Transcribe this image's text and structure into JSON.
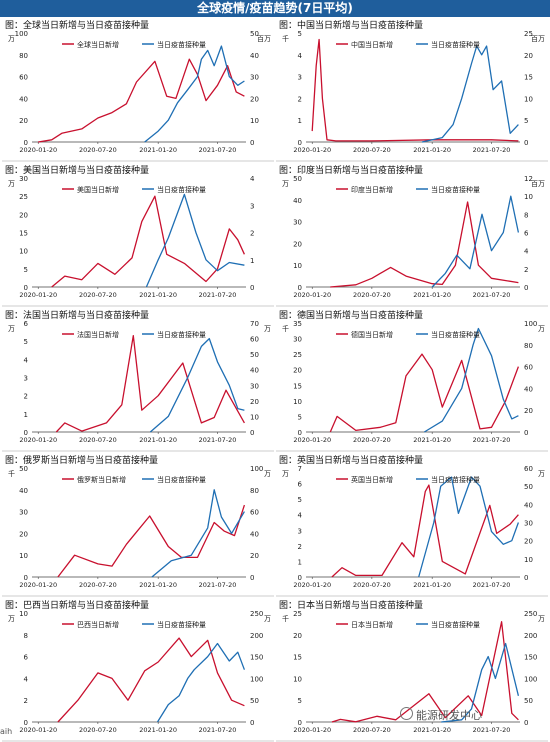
{
  "header": {
    "title": "全球疫情/疫苗趋势(7日平均)"
  },
  "watermark": "能源研发中心",
  "left_mark": "aih",
  "colors": {
    "cases": "#c8102e",
    "vaccine": "#1f6fb4",
    "banner": "#1f5e9c"
  },
  "chart_data": [
    {
      "type": "line",
      "title": "图：全球当日新增与当日疫苗接种量",
      "x_ticks": [
        "2020-01-20",
        "2020-07-20",
        "2021-01-20",
        "2021-07-20"
      ],
      "left_unit": "万",
      "right_unit": "百万",
      "ylim_left": [
        0,
        100
      ],
      "yticks_left": [
        0,
        20,
        40,
        60,
        80,
        100
      ],
      "ylim_right": [
        0,
        50
      ],
      "yticks_right": [
        0,
        10,
        20,
        30,
        40,
        50
      ],
      "series": [
        {
          "name": "全球当日新增",
          "axis": "left",
          "x": [
            "2020-01-20",
            "2020-03-01",
            "2020-04-01",
            "2020-06-01",
            "2020-07-20",
            "2020-09-01",
            "2020-10-15",
            "2020-11-15",
            "2021-01-10",
            "2021-02-15",
            "2021-03-15",
            "2021-04-25",
            "2021-05-20",
            "2021-06-15",
            "2021-07-20",
            "2021-08-20",
            "2021-09-15",
            "2021-10-10"
          ],
          "values": [
            0,
            2,
            8,
            12,
            22,
            27,
            35,
            55,
            74,
            42,
            40,
            76,
            62,
            38,
            52,
            70,
            46,
            42
          ]
        },
        {
          "name": "当日疫苗接种量",
          "axis": "right",
          "x": [
            "2020-12-10",
            "2021-01-20",
            "2021-02-20",
            "2021-03-20",
            "2021-04-20",
            "2021-05-20",
            "2021-06-01",
            "2021-06-20",
            "2021-07-10",
            "2021-08-01",
            "2021-08-25",
            "2021-09-20",
            "2021-10-10"
          ],
          "values": [
            0,
            5,
            10,
            18,
            24,
            30,
            38,
            42,
            35,
            44,
            30,
            26,
            28
          ]
        }
      ]
    },
    {
      "type": "line",
      "title": "图：中国当日新增与当日疫苗接种量",
      "x_ticks": [
        "2020-01-20",
        "2020-07-20",
        "2021-01-20",
        "2021-07-20"
      ],
      "left_unit": "千",
      "right_unit": "百万",
      "ylim_left": [
        0,
        5
      ],
      "yticks_left": [
        0,
        1,
        2,
        3,
        4,
        5
      ],
      "ylim_right": [
        0,
        25
      ],
      "yticks_right": [
        0,
        5,
        10,
        15,
        20,
        25
      ],
      "series": [
        {
          "name": "中国当日新增",
          "axis": "left",
          "x": [
            "2020-01-20",
            "2020-02-01",
            "2020-02-10",
            "2020-02-20",
            "2020-03-05",
            "2020-04-01",
            "2020-07-20",
            "2021-01-20",
            "2021-07-20",
            "2021-10-10"
          ],
          "values": [
            0.5,
            3.5,
            4.7,
            2,
            0.1,
            0.05,
            0.05,
            0.1,
            0.1,
            0.05
          ]
        },
        {
          "name": "当日疫苗接种量",
          "axis": "right",
          "x": [
            "2020-12-20",
            "2021-02-20",
            "2021-03-25",
            "2021-04-20",
            "2021-05-20",
            "2021-06-05",
            "2021-06-20",
            "2021-07-05",
            "2021-07-25",
            "2021-08-20",
            "2021-09-15",
            "2021-10-10"
          ],
          "values": [
            0,
            1,
            4,
            10,
            18,
            22,
            20,
            22,
            12,
            14,
            2,
            4
          ]
        }
      ]
    },
    {
      "type": "line",
      "title": "图：美国当日新增与当日疫苗接种量",
      "x_ticks": [
        "2020-01-20",
        "2020-07-20",
        "2021-01-20",
        "2021-07-20"
      ],
      "left_unit": "万",
      "right_unit": "",
      "ylim_left": [
        0,
        30
      ],
      "yticks_left": [
        0,
        5,
        10,
        15,
        20,
        25,
        30
      ],
      "ylim_right": [
        0,
        4
      ],
      "yticks_right": [
        0,
        1,
        2,
        3,
        4
      ],
      "series": [
        {
          "name": "美国当日新增",
          "axis": "left",
          "x": [
            "2020-03-01",
            "2020-04-10",
            "2020-06-01",
            "2020-07-20",
            "2020-09-10",
            "2020-11-01",
            "2020-12-01",
            "2021-01-10",
            "2021-02-15",
            "2021-04-10",
            "2021-06-15",
            "2021-07-20",
            "2021-08-25",
            "2021-09-20",
            "2021-10-10"
          ],
          "values": [
            0,
            3,
            2,
            6.5,
            3.5,
            8,
            18,
            25,
            9,
            6.5,
            1.5,
            5,
            16,
            13,
            9
          ]
        },
        {
          "name": "当日疫苗接种量",
          "axis": "right",
          "x": [
            "2020-12-15",
            "2021-01-20",
            "2021-02-20",
            "2021-04-10",
            "2021-05-15",
            "2021-06-15",
            "2021-07-20",
            "2021-08-25",
            "2021-10-10"
          ],
          "values": [
            0,
            1,
            1.8,
            3.4,
            2,
            1,
            0.6,
            0.9,
            0.8
          ]
        }
      ]
    },
    {
      "type": "line",
      "title": "图：印度当日新增与当日疫苗接种量",
      "x_ticks": [
        "2020-01-20",
        "2020-07-20",
        "2021-01-20",
        "2021-07-20"
      ],
      "left_unit": "万",
      "right_unit": "百万",
      "ylim_left": [
        0,
        50
      ],
      "yticks_left": [
        0,
        10,
        20,
        30,
        40,
        50
      ],
      "ylim_right": [
        0,
        12
      ],
      "yticks_right": [
        0,
        2,
        4,
        6,
        8,
        10,
        12
      ],
      "series": [
        {
          "name": "印度当日新增",
          "axis": "left",
          "x": [
            "2020-03-15",
            "2020-06-01",
            "2020-07-20",
            "2020-09-15",
            "2020-11-01",
            "2021-01-20",
            "2021-02-20",
            "2021-04-01",
            "2021-05-08",
            "2021-06-10",
            "2021-07-20",
            "2021-10-10"
          ],
          "values": [
            0,
            1,
            4,
            9,
            5,
            1.5,
            1.2,
            10,
            39,
            10,
            4,
            2
          ]
        },
        {
          "name": "当日疫苗接种量",
          "axis": "right",
          "x": [
            "2021-01-20",
            "2021-03-01",
            "2021-04-05",
            "2021-05-15",
            "2021-06-21",
            "2021-07-20",
            "2021-08-25",
            "2021-09-17",
            "2021-10-10"
          ],
          "values": [
            0,
            1.5,
            3.5,
            2,
            8,
            4,
            6,
            10,
            6
          ]
        }
      ]
    },
    {
      "type": "line",
      "title": "图：法国当日新增与当日疫苗接种量",
      "x_ticks": [
        "2020-01-20",
        "2020-07-20",
        "2021-01-20",
        "2021-07-20"
      ],
      "left_unit": "万",
      "right_unit": "万",
      "ylim_left": [
        0,
        6
      ],
      "yticks_left": [
        0,
        1,
        2,
        3,
        4,
        5,
        6
      ],
      "ylim_right": [
        0,
        70
      ],
      "yticks_right": [
        0,
        10,
        20,
        30,
        40,
        50,
        60,
        70
      ],
      "series": [
        {
          "name": "法国当日新增",
          "axis": "left",
          "x": [
            "2020-03-15",
            "2020-04-10",
            "2020-06-01",
            "2020-08-15",
            "2020-10-01",
            "2020-11-05",
            "2020-12-01",
            "2021-01-20",
            "2021-04-05",
            "2021-06-01",
            "2021-07-10",
            "2021-08-15",
            "2021-10-10"
          ],
          "values": [
            0,
            0.5,
            0.05,
            0.5,
            1.5,
            5.3,
            1.2,
            2,
            3.8,
            0.5,
            0.8,
            2.3,
            0.5
          ]
        },
        {
          "name": "当日疫苗接种量",
          "axis": "right",
          "x": [
            "2020-12-27",
            "2021-02-20",
            "2021-04-20",
            "2021-06-01",
            "2021-06-25",
            "2021-07-20",
            "2021-08-25",
            "2021-09-20",
            "2021-10-10"
          ],
          "values": [
            0,
            10,
            35,
            55,
            60,
            45,
            30,
            15,
            14
          ]
        }
      ]
    },
    {
      "type": "line",
      "title": "图：德国当日新增与当日疫苗接种量",
      "x_ticks": [
        "2020-01-20",
        "2020-07-20",
        "2021-01-20",
        "2021-07-20"
      ],
      "left_unit": "千",
      "right_unit": "万",
      "ylim_left": [
        0,
        35
      ],
      "yticks_left": [
        0,
        5,
        10,
        15,
        20,
        25,
        30,
        35
      ],
      "ylim_right": [
        0,
        100
      ],
      "yticks_right": [
        0,
        20,
        40,
        60,
        80,
        100
      ],
      "series": [
        {
          "name": "德国当日新增",
          "axis": "left",
          "x": [
            "2020-03-15",
            "2020-04-05",
            "2020-06-01",
            "2020-08-15",
            "2020-10-01",
            "2020-11-01",
            "2020-12-20",
            "2021-01-20",
            "2021-02-20",
            "2021-04-20",
            "2021-06-15",
            "2021-07-20",
            "2021-09-01",
            "2021-10-10"
          ],
          "values": [
            0,
            5,
            0.5,
            1.5,
            3,
            18,
            25,
            20,
            8,
            23,
            1,
            1.5,
            10,
            21
          ]
        },
        {
          "name": "当日疫苗接种量",
          "axis": "right",
          "x": [
            "2020-12-27",
            "2021-02-20",
            "2021-04-20",
            "2021-05-25",
            "2021-06-10",
            "2021-07-20",
            "2021-08-25",
            "2021-09-20",
            "2021-10-10"
          ],
          "values": [
            0,
            10,
            40,
            80,
            95,
            70,
            30,
            12,
            15
          ]
        }
      ]
    },
    {
      "type": "line",
      "title": "图：俄罗斯当日新增与当日疫苗接种量",
      "x_ticks": [
        "2020-01-20",
        "2020-07-20",
        "2021-01-20",
        "2021-07-20"
      ],
      "left_unit": "千",
      "right_unit": "万",
      "ylim_left": [
        0,
        50
      ],
      "yticks_left": [
        0,
        10,
        20,
        30,
        40,
        50
      ],
      "ylim_right": [
        0,
        100
      ],
      "yticks_right": [
        0,
        20,
        40,
        60,
        80,
        100
      ],
      "series": [
        {
          "name": "俄罗斯当日新增",
          "axis": "left",
          "x": [
            "2020-03-20",
            "2020-05-10",
            "2020-07-20",
            "2020-09-01",
            "2020-10-15",
            "2020-12-25",
            "2021-02-20",
            "2021-04-01",
            "2021-05-20",
            "2021-07-10",
            "2021-08-10",
            "2021-09-10",
            "2021-10-10"
          ],
          "values": [
            0,
            10,
            6,
            5,
            15,
            28,
            14,
            9,
            9,
            25,
            21,
            19,
            33
          ]
        },
        {
          "name": "当日疫苗接种量",
          "axis": "right",
          "x": [
            "2021-01-01",
            "2021-03-01",
            "2021-05-01",
            "2021-06-20",
            "2021-07-10",
            "2021-08-01",
            "2021-09-01",
            "2021-10-10"
          ],
          "values": [
            0,
            15,
            20,
            45,
            80,
            55,
            40,
            60
          ]
        }
      ]
    },
    {
      "type": "line",
      "title": "图：英国当日新增与当日疫苗接种量",
      "x_ticks": [
        "2020-01-20",
        "2020-07-20",
        "2021-01-20",
        "2021-07-20"
      ],
      "left_unit": "万",
      "right_unit": "万",
      "ylim_left": [
        0,
        7
      ],
      "yticks_left": [
        0,
        1,
        2,
        3,
        4,
        5,
        6,
        7
      ],
      "ylim_right": [
        0,
        60
      ],
      "yticks_right": [
        0,
        10,
        20,
        30,
        40,
        50,
        60
      ],
      "series": [
        {
          "name": "英国当日新增",
          "axis": "left",
          "x": [
            "2020-03-20",
            "2020-04-20",
            "2020-06-01",
            "2020-08-20",
            "2020-10-20",
            "2020-11-25",
            "2020-12-30",
            "2021-01-10",
            "2021-02-20",
            "2021-05-01",
            "2021-07-15",
            "2021-08-05",
            "2021-09-15",
            "2021-10-10"
          ],
          "values": [
            0,
            0.6,
            0.1,
            0.1,
            2.2,
            1.3,
            5.5,
            5.9,
            1,
            0.2,
            4.6,
            2.8,
            3.4,
            4
          ]
        },
        {
          "name": "当日疫苗接种量",
          "axis": "right",
          "x": [
            "2020-12-10",
            "2021-01-25",
            "2021-02-15",
            "2021-03-20",
            "2021-04-10",
            "2021-05-20",
            "2021-06-15",
            "2021-07-20",
            "2021-08-25",
            "2021-09-20",
            "2021-10-10"
          ],
          "values": [
            0,
            30,
            50,
            55,
            35,
            55,
            50,
            25,
            18,
            20,
            30
          ]
        }
      ]
    },
    {
      "type": "line",
      "title": "图：巴西当日新增与当日疫苗接种量",
      "x_ticks": [
        "2020-01-20",
        "2020-07-20",
        "2021-01-20",
        "2021-07-20"
      ],
      "left_unit": "万",
      "right_unit": "万",
      "ylim_left": [
        0,
        10
      ],
      "yticks_left": [
        0,
        2,
        4,
        6,
        8,
        10
      ],
      "ylim_right": [
        0,
        250
      ],
      "yticks_right": [
        0,
        50,
        100,
        150,
        200,
        250
      ],
      "series": [
        {
          "name": "巴西当日新增",
          "axis": "left",
          "x": [
            "2020-03-20",
            "2020-05-20",
            "2020-07-20",
            "2020-09-01",
            "2020-10-20",
            "2020-12-10",
            "2021-01-20",
            "2021-03-25",
            "2021-05-01",
            "2021-06-20",
            "2021-07-20",
            "2021-09-01",
            "2021-10-10"
          ],
          "values": [
            0,
            2,
            4.5,
            4,
            2,
            4.7,
            5.5,
            7.7,
            6,
            7.5,
            4.5,
            2,
            1.5
          ]
        },
        {
          "name": "当日疫苗接种量",
          "axis": "right",
          "x": [
            "2021-01-18",
            "2021-02-20",
            "2021-03-25",
            "2021-04-20",
            "2021-05-10",
            "2021-06-20",
            "2021-07-20",
            "2021-08-25",
            "2021-09-20",
            "2021-10-10"
          ],
          "values": [
            0,
            40,
            60,
            100,
            120,
            150,
            180,
            140,
            160,
            120
          ]
        }
      ]
    },
    {
      "type": "line",
      "title": "图：日本当日新增与当日疫苗接种量",
      "x_ticks": [
        "2020-01-20",
        "2020-07-20",
        "2021-01-20",
        "2021-07-20"
      ],
      "left_unit": "千",
      "right_unit": "万",
      "ylim_left": [
        0,
        25
      ],
      "yticks_left": [
        0,
        5,
        10,
        15,
        20,
        25
      ],
      "ylim_right": [
        0,
        250
      ],
      "yticks_right": [
        0,
        50,
        100,
        150,
        200,
        250
      ],
      "series": [
        {
          "name": "日本当日新增",
          "axis": "left",
          "x": [
            "2020-03-20",
            "2020-04-15",
            "2020-06-01",
            "2020-08-05",
            "2020-10-01",
            "2021-01-10",
            "2021-03-01",
            "2021-05-10",
            "2021-06-20",
            "2021-08-20",
            "2021-09-20",
            "2021-10-10"
          ],
          "values": [
            0,
            0.6,
            0.05,
            1.3,
            0.5,
            6.5,
            1,
            6,
            1.5,
            23,
            2,
            0.5
          ]
        },
        {
          "name": "当日疫苗接种量",
          "axis": "right",
          "x": [
            "2021-02-17",
            "2021-04-20",
            "2021-05-20",
            "2021-06-20",
            "2021-07-10",
            "2021-08-01",
            "2021-09-01",
            "2021-10-10"
          ],
          "values": [
            0,
            5,
            30,
            120,
            150,
            100,
            180,
            60
          ]
        }
      ]
    }
  ]
}
